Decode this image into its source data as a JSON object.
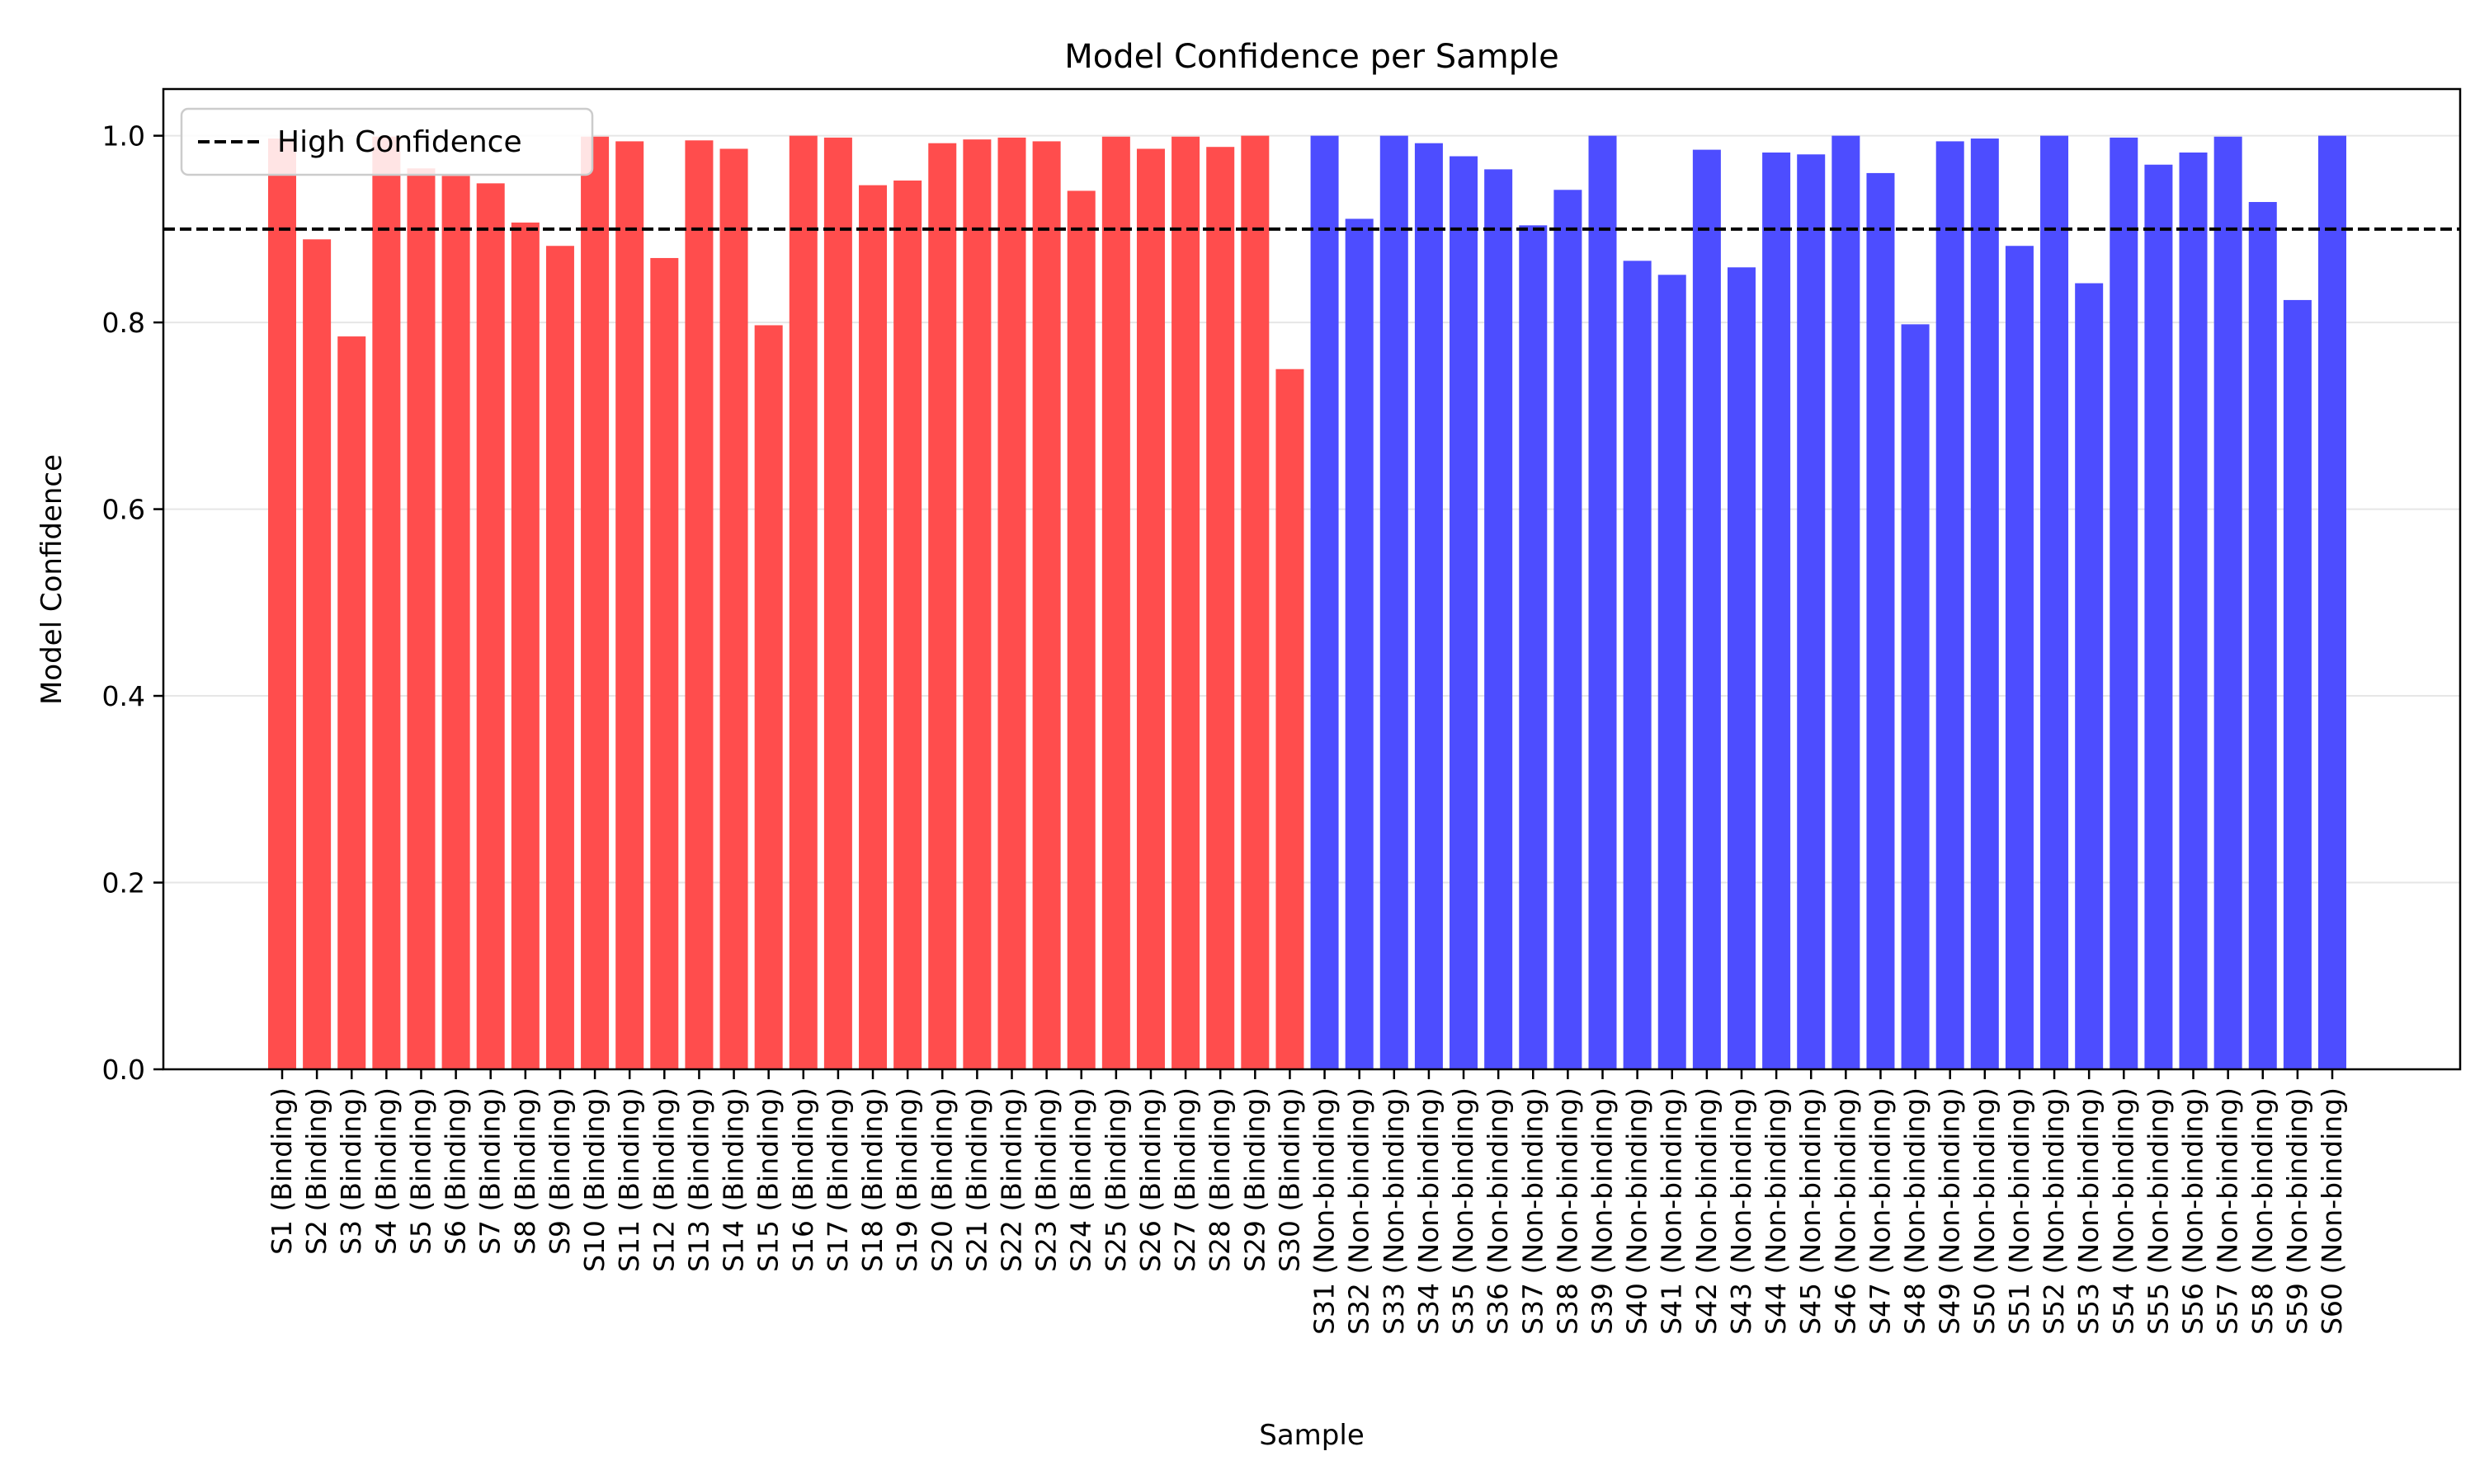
{
  "chart_data": {
    "type": "bar",
    "title": "Model Confidence per Sample",
    "xlabel": "Sample",
    "ylabel": "Model Confidence",
    "ylim": [
      0,
      1.05
    ],
    "yticks": [
      "0.0",
      "0.2",
      "0.4",
      "0.6",
      "0.8",
      "1.0"
    ],
    "grid": "y",
    "legend": {
      "placement": "top-left",
      "entries": [
        "High Confidence"
      ]
    },
    "threshold": {
      "label": "High Confidence",
      "value": 0.9,
      "style": "dashed",
      "color": "#000000"
    },
    "categories": [
      "S1 (Binding)",
      "S2 (Binding)",
      "S3 (Binding)",
      "S4 (Binding)",
      "S5 (Binding)",
      "S6 (Binding)",
      "S7 (Binding)",
      "S8 (Binding)",
      "S9 (Binding)",
      "S10 (Binding)",
      "S11 (Binding)",
      "S12 (Binding)",
      "S13 (Binding)",
      "S14 (Binding)",
      "S15 (Binding)",
      "S16 (Binding)",
      "S17 (Binding)",
      "S18 (Binding)",
      "S19 (Binding)",
      "S20 (Binding)",
      "S21 (Binding)",
      "S22 (Binding)",
      "S23 (Binding)",
      "S24 (Binding)",
      "S25 (Binding)",
      "S26 (Binding)",
      "S27 (Binding)",
      "S28 (Binding)",
      "S29 (Binding)",
      "S30 (Binding)",
      "S31 (Non-binding)",
      "S32 (Non-binding)",
      "S33 (Non-binding)",
      "S34 (Non-binding)",
      "S35 (Non-binding)",
      "S36 (Non-binding)",
      "S37 (Non-binding)",
      "S38 (Non-binding)",
      "S39 (Non-binding)",
      "S40 (Non-binding)",
      "S41 (Non-binding)",
      "S42 (Non-binding)",
      "S43 (Non-binding)",
      "S44 (Non-binding)",
      "S45 (Non-binding)",
      "S46 (Non-binding)",
      "S47 (Non-binding)",
      "S48 (Non-binding)",
      "S49 (Non-binding)",
      "S50 (Non-binding)",
      "S51 (Non-binding)",
      "S52 (Non-binding)",
      "S53 (Non-binding)",
      "S54 (Non-binding)",
      "S55 (Non-binding)",
      "S56 (Non-binding)",
      "S57 (Non-binding)",
      "S58 (Non-binding)",
      "S59 (Non-binding)",
      "S60 (Non-binding)"
    ],
    "values": [
      0.997,
      0.889,
      0.785,
      0.999,
      0.965,
      0.957,
      0.949,
      0.907,
      0.882,
      0.999,
      0.994,
      0.869,
      0.995,
      0.986,
      0.797,
      1.0,
      0.998,
      0.947,
      0.952,
      0.992,
      0.996,
      0.998,
      0.994,
      0.941,
      0.999,
      0.986,
      0.999,
      0.988,
      1.0,
      0.75,
      1.0,
      0.911,
      1.0,
      0.992,
      0.978,
      0.964,
      0.904,
      0.942,
      1.0,
      0.866,
      0.851,
      0.985,
      0.859,
      0.982,
      0.98,
      1.0,
      0.96,
      0.798,
      0.994,
      0.997,
      0.882,
      1.0,
      0.842,
      0.998,
      0.969,
      0.982,
      0.999,
      0.929,
      0.824,
      1.0
    ],
    "group_colors": {
      "Binding": "#ff4d4d",
      "Non-binding": "#4d4dff"
    }
  }
}
